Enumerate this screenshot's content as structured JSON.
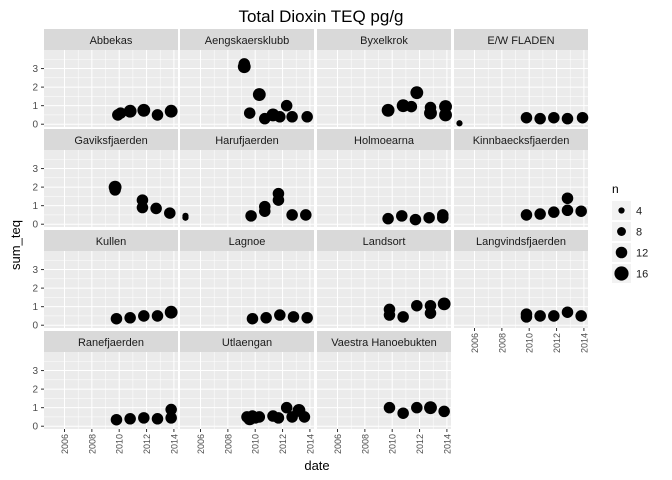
{
  "chart_data": {
    "type": "scatter",
    "title": "Total Dioxin TEQ pg/g",
    "xlabel": "date",
    "ylabel": "sum_teq",
    "xlim": [
      2004.5,
      2014.3
    ],
    "ylim": [
      -0.15,
      4.0
    ],
    "x_ticks": [
      "2006",
      "2008",
      "2010",
      "2012",
      "2014"
    ],
    "y_ticks": [
      "0",
      "1",
      "2",
      "3"
    ],
    "grid": true,
    "facet_columns": 4,
    "legend": {
      "title": "n",
      "position": "right",
      "entries": [
        {
          "label": "4",
          "size": 4
        },
        {
          "label": "8",
          "size": 8
        },
        {
          "label": "12",
          "size": 12
        },
        {
          "label": "16",
          "size": 16
        }
      ]
    },
    "colors": {
      "point": "#000000",
      "panel": "#ebebeb",
      "strip": "#d9d9d9",
      "grid": "#ffffff"
    },
    "panels": [
      {
        "name": "Abbekas",
        "points": [
          {
            "x": 2009.9,
            "y": 0.5,
            "n": 12
          },
          {
            "x": 2010.1,
            "y": 0.6,
            "n": 12
          },
          {
            "x": 2010.8,
            "y": 0.7,
            "n": 14
          },
          {
            "x": 2011.8,
            "y": 0.75,
            "n": 14
          },
          {
            "x": 2012.8,
            "y": 0.5,
            "n": 12
          },
          {
            "x": 2013.8,
            "y": 0.7,
            "n": 14
          }
        ]
      },
      {
        "name": "Aengskaersklubb",
        "points": [
          {
            "x": 2009.2,
            "y": 3.25,
            "n": 12
          },
          {
            "x": 2009.2,
            "y": 3.1,
            "n": 14
          },
          {
            "x": 2009.6,
            "y": 0.6,
            "n": 12
          },
          {
            "x": 2010.3,
            "y": 1.6,
            "n": 14
          },
          {
            "x": 2010.7,
            "y": 0.3,
            "n": 12
          },
          {
            "x": 2011.3,
            "y": 0.5,
            "n": 14
          },
          {
            "x": 2011.8,
            "y": 0.4,
            "n": 12
          },
          {
            "x": 2012.3,
            "y": 1.0,
            "n": 12
          },
          {
            "x": 2012.7,
            "y": 0.4,
            "n": 12
          },
          {
            "x": 2013.8,
            "y": 0.4,
            "n": 12
          }
        ]
      },
      {
        "name": "Byxelkrok",
        "points": [
          {
            "x": 2009.7,
            "y": 0.75,
            "n": 14
          },
          {
            "x": 2010.8,
            "y": 1.0,
            "n": 14
          },
          {
            "x": 2011.4,
            "y": 0.95,
            "n": 12
          },
          {
            "x": 2011.8,
            "y": 1.7,
            "n": 14
          },
          {
            "x": 2012.8,
            "y": 0.6,
            "n": 14
          },
          {
            "x": 2012.8,
            "y": 0.9,
            "n": 12
          },
          {
            "x": 2013.9,
            "y": 0.5,
            "n": 14
          },
          {
            "x": 2013.9,
            "y": 0.95,
            "n": 14
          }
        ]
      },
      {
        "name": "E/W FLADEN",
        "points": [
          {
            "x": 2004.9,
            "y": 0.05,
            "n": 4
          },
          {
            "x": 2009.8,
            "y": 0.35,
            "n": 12
          },
          {
            "x": 2010.8,
            "y": 0.3,
            "n": 12
          },
          {
            "x": 2011.8,
            "y": 0.35,
            "n": 12
          },
          {
            "x": 2012.8,
            "y": 0.3,
            "n": 12
          },
          {
            "x": 2013.9,
            "y": 0.35,
            "n": 12
          }
        ]
      },
      {
        "name": "Gaviksfjaerden",
        "points": [
          {
            "x": 2009.7,
            "y": 2.0,
            "n": 14
          },
          {
            "x": 2009.7,
            "y": 1.85,
            "n": 12
          },
          {
            "x": 2011.7,
            "y": 1.3,
            "n": 12
          },
          {
            "x": 2011.7,
            "y": 0.9,
            "n": 12
          },
          {
            "x": 2012.7,
            "y": 0.85,
            "n": 12
          },
          {
            "x": 2013.7,
            "y": 0.6,
            "n": 12
          }
        ]
      },
      {
        "name": "Harufjaerden",
        "points": [
          {
            "x": 2004.9,
            "y": 0.45,
            "n": 4
          },
          {
            "x": 2004.9,
            "y": 0.35,
            "n": 4
          },
          {
            "x": 2009.7,
            "y": 0.45,
            "n": 12
          },
          {
            "x": 2010.7,
            "y": 0.7,
            "n": 12
          },
          {
            "x": 2010.7,
            "y": 0.95,
            "n": 12
          },
          {
            "x": 2011.7,
            "y": 1.65,
            "n": 12
          },
          {
            "x": 2011.7,
            "y": 1.3,
            "n": 12
          },
          {
            "x": 2012.7,
            "y": 0.5,
            "n": 12
          },
          {
            "x": 2013.7,
            "y": 0.5,
            "n": 12
          }
        ]
      },
      {
        "name": "Holmoearna",
        "points": [
          {
            "x": 2009.7,
            "y": 0.3,
            "n": 12
          },
          {
            "x": 2010.7,
            "y": 0.45,
            "n": 12
          },
          {
            "x": 2011.7,
            "y": 0.25,
            "n": 12
          },
          {
            "x": 2012.7,
            "y": 0.35,
            "n": 12
          },
          {
            "x": 2013.7,
            "y": 0.35,
            "n": 12
          },
          {
            "x": 2013.7,
            "y": 0.5,
            "n": 12
          }
        ]
      },
      {
        "name": "Kinnbaecksfjaerden",
        "points": [
          {
            "x": 2009.8,
            "y": 0.5,
            "n": 12
          },
          {
            "x": 2010.8,
            "y": 0.55,
            "n": 12
          },
          {
            "x": 2011.8,
            "y": 0.65,
            "n": 12
          },
          {
            "x": 2012.8,
            "y": 0.75,
            "n": 12
          },
          {
            "x": 2012.8,
            "y": 1.4,
            "n": 12
          },
          {
            "x": 2013.8,
            "y": 0.7,
            "n": 12
          }
        ]
      },
      {
        "name": "Kullen",
        "points": [
          {
            "x": 2009.8,
            "y": 0.35,
            "n": 12
          },
          {
            "x": 2010.8,
            "y": 0.4,
            "n": 12
          },
          {
            "x": 2011.8,
            "y": 0.5,
            "n": 12
          },
          {
            "x": 2012.8,
            "y": 0.5,
            "n": 12
          },
          {
            "x": 2013.8,
            "y": 0.7,
            "n": 14
          }
        ]
      },
      {
        "name": "Lagnoe",
        "points": [
          {
            "x": 2009.8,
            "y": 0.35,
            "n": 12
          },
          {
            "x": 2010.8,
            "y": 0.4,
            "n": 12
          },
          {
            "x": 2011.8,
            "y": 0.55,
            "n": 12
          },
          {
            "x": 2012.8,
            "y": 0.45,
            "n": 12
          },
          {
            "x": 2013.8,
            "y": 0.4,
            "n": 12
          }
        ]
      },
      {
        "name": "Landsort",
        "points": [
          {
            "x": 2009.8,
            "y": 0.85,
            "n": 12
          },
          {
            "x": 2009.8,
            "y": 0.55,
            "n": 12
          },
          {
            "x": 2010.8,
            "y": 0.45,
            "n": 12
          },
          {
            "x": 2011.8,
            "y": 1.05,
            "n": 12
          },
          {
            "x": 2012.8,
            "y": 0.65,
            "n": 12
          },
          {
            "x": 2012.8,
            "y": 1.05,
            "n": 12
          },
          {
            "x": 2013.8,
            "y": 1.15,
            "n": 14
          }
        ]
      },
      {
        "name": "Langvindsfjaerden",
        "points": [
          {
            "x": 2009.8,
            "y": 0.6,
            "n": 12
          },
          {
            "x": 2009.8,
            "y": 0.45,
            "n": 12
          },
          {
            "x": 2010.8,
            "y": 0.5,
            "n": 12
          },
          {
            "x": 2011.8,
            "y": 0.5,
            "n": 12
          },
          {
            "x": 2012.8,
            "y": 0.7,
            "n": 12
          },
          {
            "x": 2013.8,
            "y": 0.5,
            "n": 12
          }
        ]
      },
      {
        "name": "Ranefjaerden",
        "points": [
          {
            "x": 2009.8,
            "y": 0.35,
            "n": 12
          },
          {
            "x": 2010.8,
            "y": 0.4,
            "n": 12
          },
          {
            "x": 2011.8,
            "y": 0.45,
            "n": 12
          },
          {
            "x": 2012.8,
            "y": 0.4,
            "n": 12
          },
          {
            "x": 2013.8,
            "y": 0.45,
            "n": 12
          },
          {
            "x": 2013.8,
            "y": 0.9,
            "n": 12
          }
        ]
      },
      {
        "name": "Utlaengan",
        "points": [
          {
            "x": 2009.4,
            "y": 0.5,
            "n": 12
          },
          {
            "x": 2009.6,
            "y": 0.4,
            "n": 14
          },
          {
            "x": 2009.8,
            "y": 0.55,
            "n": 12
          },
          {
            "x": 2010.0,
            "y": 0.45,
            "n": 12
          },
          {
            "x": 2010.3,
            "y": 0.5,
            "n": 12
          },
          {
            "x": 2011.3,
            "y": 0.55,
            "n": 12
          },
          {
            "x": 2011.7,
            "y": 0.45,
            "n": 12
          },
          {
            "x": 2012.3,
            "y": 1.0,
            "n": 12
          },
          {
            "x": 2012.7,
            "y": 0.5,
            "n": 12
          },
          {
            "x": 2013.2,
            "y": 0.85,
            "n": 14
          },
          {
            "x": 2013.6,
            "y": 0.5,
            "n": 12
          }
        ]
      },
      {
        "name": "Vaestra Hanoebukten",
        "points": [
          {
            "x": 2009.8,
            "y": 1.0,
            "n": 12
          },
          {
            "x": 2010.8,
            "y": 0.7,
            "n": 12
          },
          {
            "x": 2011.8,
            "y": 1.0,
            "n": 12
          },
          {
            "x": 2012.8,
            "y": 1.0,
            "n": 14
          },
          {
            "x": 2013.8,
            "y": 0.8,
            "n": 12
          }
        ]
      }
    ]
  }
}
